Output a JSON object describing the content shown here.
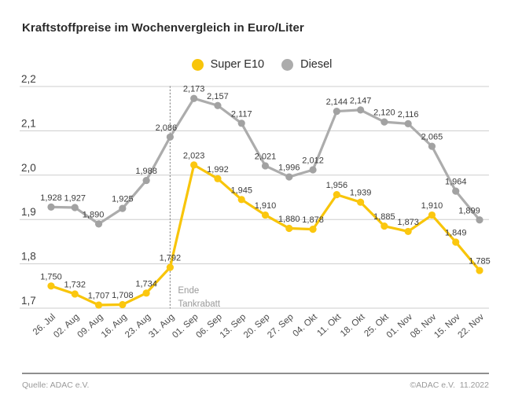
{
  "title": "Kraftstoffpreise im Wochenvergleich in Euro/Liter",
  "legend": [
    {
      "label": "Super E10",
      "color": "#F8C50A"
    },
    {
      "label": "Diesel",
      "color": "#ACACAC"
    }
  ],
  "chart_data": {
    "type": "line",
    "title": "Kraftstoffpreise im Wochenvergleich in Euro/Liter",
    "xlabel": "",
    "ylabel": "Euro/Liter",
    "ylim": [
      1.7,
      2.2
    ],
    "grid": true,
    "legend_position": "top-center",
    "categories": [
      "26. Jul",
      "02. Aug",
      "09. Aug",
      "16. Aug",
      "23. Aug",
      "31. Aug",
      "01. Sep",
      "06. Sep",
      "13. Sep",
      "20. Sep",
      "27. Sep",
      "04. Okt",
      "11. Okt",
      "18. Okt",
      "25. Okt",
      "01. Nov",
      "08. Nov",
      "15. Nov",
      "22. Nov"
    ],
    "yticks": {
      "values": [
        1.7,
        1.8,
        1.9,
        2.0,
        2.1,
        2.2
      ],
      "labels": [
        "1,7",
        "1,8",
        "1,9",
        "2,0",
        "2,1",
        "2,2"
      ]
    },
    "series": [
      {
        "name": "Super E10",
        "color": "#F8C50A",
        "dot_color": "#FBC70F",
        "values": [
          1.75,
          1.732,
          1.707,
          1.708,
          1.734,
          1.792,
          2.023,
          1.992,
          1.945,
          1.91,
          1.88,
          1.878,
          1.956,
          1.939,
          1.885,
          1.873,
          1.91,
          1.849,
          1.785
        ],
        "labels": [
          "1,750",
          "1,732",
          "1,707",
          "1,708",
          "1,734",
          "1,792",
          "2,023",
          "1,992",
          "1,945",
          "1,910",
          "1,880",
          "1,878",
          "1,956",
          "1,939",
          "1,885",
          "1,873",
          "1,910",
          "1,849",
          "1,785"
        ]
      },
      {
        "name": "Diesel",
        "color": "#ACACAC",
        "dot_color": "#A2A2A2",
        "values": [
          1.928,
          1.927,
          1.89,
          1.925,
          1.988,
          2.086,
          2.173,
          2.157,
          2.117,
          2.021,
          1.996,
          2.012,
          2.144,
          2.147,
          2.12,
          2.116,
          2.065,
          1.964,
          1.899
        ],
        "labels": [
          "1,928",
          "1,927",
          "1,890",
          "1,925",
          "1,988",
          "2,086",
          "2,173",
          "2,157",
          "2,117",
          "2,021",
          "1,996",
          "2,012",
          "2,144",
          "2,147",
          "2,120",
          "2,116",
          "2,065",
          "1,964",
          "1,899"
        ]
      }
    ],
    "annotation": {
      "index": 5,
      "lines": [
        "Ende",
        "Tankrabatt"
      ]
    }
  },
  "footer": {
    "source": "Quelle: ADAC e.V.",
    "copyright": "©ADAC e.V.  11.2022"
  }
}
